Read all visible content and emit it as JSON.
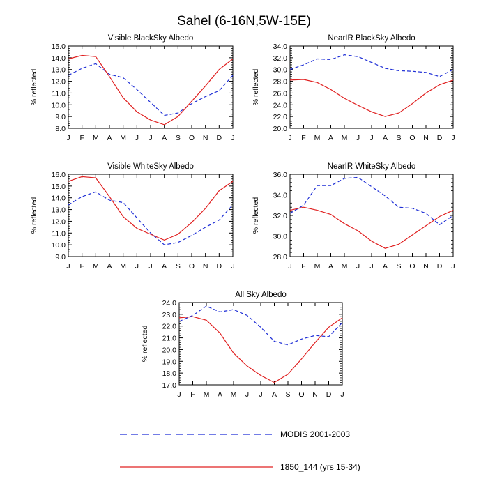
{
  "figure_title": "Sahel (6-16N,5W-15E)",
  "legend": [
    {
      "label": "MODIS 2001-2003",
      "color": "#1f2fd6",
      "style": "dashed"
    },
    {
      "label": "1850_144 (yrs 15-34)",
      "color": "#e02020",
      "style": "solid"
    }
  ],
  "chart_data": [
    {
      "type": "line",
      "title": "Visible BlackSky Albedo",
      "xlabel": "",
      "ylabel": "% reflected",
      "categories": [
        "J",
        "F",
        "M",
        "A",
        "M",
        "J",
        "J",
        "A",
        "S",
        "O",
        "N",
        "D",
        "J"
      ],
      "ylim": [
        8.0,
        15.0
      ],
      "yticks": [
        "8.0",
        "9.0",
        "10.0",
        "11.0",
        "12.0",
        "13.0",
        "14.0",
        "15.0"
      ],
      "series": [
        {
          "name": "MODIS 2001-2003",
          "color": "#1f2fd6",
          "dash": true,
          "values": [
            12.5,
            13.1,
            13.5,
            12.6,
            12.3,
            11.3,
            10.2,
            9.1,
            9.3,
            10.1,
            10.7,
            11.2,
            12.5
          ]
        },
        {
          "name": "1850_144 (yrs 15-34)",
          "color": "#e02020",
          "dash": false,
          "values": [
            13.9,
            14.2,
            14.1,
            12.4,
            10.6,
            9.4,
            8.7,
            8.3,
            9.0,
            10.3,
            11.6,
            13.0,
            13.9
          ]
        }
      ]
    },
    {
      "type": "line",
      "title": "NearIR BlackSky Albedo",
      "xlabel": "",
      "ylabel": "% reflected",
      "categories": [
        "J",
        "F",
        "M",
        "A",
        "M",
        "J",
        "J",
        "A",
        "S",
        "O",
        "N",
        "D",
        "J"
      ],
      "ylim": [
        20.0,
        34.0
      ],
      "yticks": [
        "20.0",
        "22.0",
        "24.0",
        "26.0",
        "28.0",
        "30.0",
        "32.0",
        "34.0"
      ],
      "series": [
        {
          "name": "MODIS 2001-2003",
          "color": "#1f2fd6",
          "dash": true,
          "values": [
            30.0,
            30.8,
            31.8,
            31.7,
            32.5,
            32.2,
            31.2,
            30.2,
            29.8,
            29.7,
            29.5,
            28.8,
            30.0
          ]
        },
        {
          "name": "1850_144 (yrs 15-34)",
          "color": "#e02020",
          "dash": false,
          "values": [
            28.2,
            28.3,
            27.8,
            26.6,
            25.1,
            23.9,
            22.8,
            22.0,
            22.6,
            24.2,
            26.0,
            27.4,
            28.2
          ]
        }
      ]
    },
    {
      "type": "line",
      "title": "Visible WhiteSky Albedo",
      "xlabel": "",
      "ylabel": "% reflected",
      "categories": [
        "J",
        "F",
        "M",
        "A",
        "M",
        "J",
        "J",
        "A",
        "S",
        "O",
        "N",
        "D",
        "J"
      ],
      "ylim": [
        9.0,
        16.0
      ],
      "yticks": [
        "9.0",
        "10.0",
        "11.0",
        "12.0",
        "13.0",
        "14.0",
        "15.0",
        "16.0"
      ],
      "series": [
        {
          "name": "MODIS 2001-2003",
          "color": "#1f2fd6",
          "dash": true,
          "values": [
            13.4,
            14.1,
            14.5,
            13.8,
            13.6,
            12.3,
            11.0,
            10.0,
            10.2,
            10.8,
            11.5,
            12.1,
            13.4
          ]
        },
        {
          "name": "1850_144 (yrs 15-34)",
          "color": "#e02020",
          "dash": false,
          "values": [
            15.4,
            15.8,
            15.7,
            14.1,
            12.4,
            11.4,
            10.9,
            10.4,
            10.9,
            11.9,
            13.1,
            14.6,
            15.4
          ]
        }
      ]
    },
    {
      "type": "line",
      "title": "NearIR WhiteSky Albedo",
      "xlabel": "",
      "ylabel": "% reflected",
      "categories": [
        "J",
        "F",
        "M",
        "A",
        "M",
        "J",
        "J",
        "A",
        "S",
        "O",
        "N",
        "D",
        "J"
      ],
      "ylim": [
        28.0,
        36.0
      ],
      "yticks": [
        "28.0",
        "30.0",
        "32.0",
        "34.0",
        "36.0"
      ],
      "series": [
        {
          "name": "MODIS 2001-2003",
          "color": "#1f2fd6",
          "dash": true,
          "values": [
            32.2,
            33.0,
            34.9,
            34.9,
            35.6,
            35.7,
            34.8,
            33.9,
            32.8,
            32.7,
            32.2,
            31.1,
            32.0
          ]
        },
        {
          "name": "1850_144 (yrs 15-34)",
          "color": "#e02020",
          "dash": false,
          "values": [
            32.5,
            32.8,
            32.5,
            32.1,
            31.2,
            30.5,
            29.5,
            28.8,
            29.2,
            30.1,
            31.0,
            31.9,
            32.5
          ]
        }
      ]
    },
    {
      "type": "line",
      "title": "All Sky Albedo",
      "xlabel": "",
      "ylabel": "% reflected",
      "categories": [
        "J",
        "F",
        "M",
        "A",
        "M",
        "J",
        "J",
        "A",
        "S",
        "O",
        "N",
        "D",
        "J"
      ],
      "ylim": [
        17.0,
        24.0
      ],
      "yticks": [
        "17.0",
        "18.0",
        "19.0",
        "20.0",
        "21.0",
        "22.0",
        "23.0",
        "24.0"
      ],
      "series": [
        {
          "name": "MODIS 2001-2003",
          "color": "#1f2fd6",
          "dash": true,
          "values": [
            22.4,
            22.9,
            23.7,
            23.2,
            23.4,
            22.9,
            21.9,
            20.7,
            20.4,
            20.9,
            21.2,
            21.1,
            22.3
          ]
        },
        {
          "name": "1850_144 (yrs 15-34)",
          "color": "#e02020",
          "dash": false,
          "values": [
            22.7,
            22.8,
            22.5,
            21.4,
            19.7,
            18.6,
            17.8,
            17.2,
            17.9,
            19.2,
            20.6,
            21.9,
            22.7
          ]
        }
      ]
    }
  ]
}
